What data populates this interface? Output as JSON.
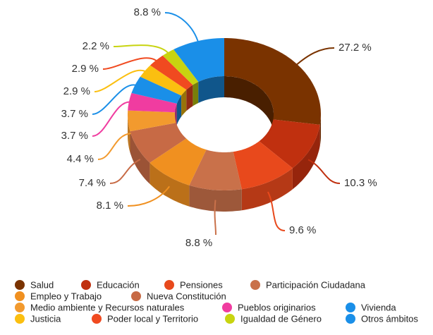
{
  "chart_data": {
    "type": "donut3d",
    "categories": [
      "Salud",
      "Educación",
      "Pensiones",
      "Participación Ciudadana",
      "Empleo y Trabajo",
      "Nueva Constitución",
      "Medio ambiente y Recursos naturales",
      "Pueblos originarios",
      "Vivienda",
      "Justicia",
      "Poder local y Territorio",
      "Igualdad de Género",
      "Otros ámbitos"
    ],
    "values": [
      27.2,
      10.3,
      9.6,
      8.8,
      8.1,
      7.4,
      4.4,
      3.7,
      3.7,
      2.9,
      2.9,
      2.2,
      8.8
    ],
    "value_labels": [
      "27.2 %",
      "10.3 %",
      "9.6 %",
      "8.8 %",
      "8.1 %",
      "7.4 %",
      "4.4 %",
      "3.7 %",
      "3.7 %",
      "2.9 %",
      "2.9 %",
      "2.2 %",
      "8.8 %"
    ],
    "colors": [
      "#7a3300",
      "#c0300f",
      "#e8491c",
      "#c9714a",
      "#f09020",
      "#c76a45",
      "#f29a2e",
      "#f03ca0",
      "#1a8fe8",
      "#fbbf10",
      "#f04a20",
      "#c8d410",
      "#1a8fe8"
    ],
    "legend": "bottom"
  }
}
